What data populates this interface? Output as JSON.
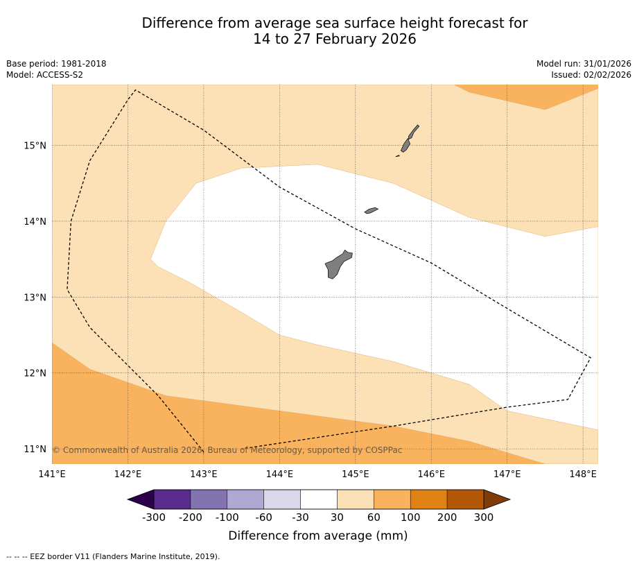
{
  "title_line1": "Difference from average sea surface height forecast for",
  "title_line2": "14 to 27 February 2026",
  "meta_left": [
    "Base period: 1981-2018",
    "Model: ACCESS-S2"
  ],
  "meta_right": [
    "Model run: 31/01/2026",
    "Issued: 02/02/2026"
  ],
  "copyright": "© Commonwealth of Australia 2026, Bureau of Meteorology, supported by COSPPac",
  "footnote": "--  --  -- EEZ border V11 (Flanders Marine Institute, 2019).",
  "map": {
    "lon_range": [
      141,
      148.2
    ],
    "lat_range": [
      10.8,
      15.8
    ],
    "lon_ticks": [
      141,
      142,
      143,
      144,
      145,
      146,
      147,
      148
    ],
    "lon_labels": [
      "141°E",
      "142°E",
      "143°E",
      "144°E",
      "145°E",
      "146°E",
      "147°E",
      "148°E"
    ],
    "lat_ticks": [
      11,
      12,
      13,
      14,
      15
    ],
    "lat_labels": [
      "11°N",
      "12°N",
      "13°N",
      "14°N",
      "15°N"
    ],
    "regions": [
      {
        "name": "30 to 60 mm",
        "color": "#fce0b6",
        "points": [
          [
            141,
            10.8
          ],
          [
            148.2,
            10.8
          ],
          [
            148.2,
            15.8
          ],
          [
            141,
            15.8
          ]
        ]
      },
      {
        "name": "60 to 100 mm (south)",
        "color": "#f9b35e",
        "points": [
          [
            141,
            12.4
          ],
          [
            141.5,
            12.05
          ],
          [
            142.5,
            11.7
          ],
          [
            144,
            11.5
          ],
          [
            145.5,
            11.3
          ],
          [
            146.5,
            11.1
          ],
          [
            147.5,
            10.8
          ],
          [
            141,
            10.8
          ]
        ]
      },
      {
        "name": "60 to 100 mm (north-east)",
        "color": "#f9b35e",
        "points": [
          [
            146.3,
            15.8
          ],
          [
            146.5,
            15.7
          ],
          [
            147.5,
            15.47
          ],
          [
            148.2,
            15.75
          ],
          [
            148.2,
            15.8
          ]
        ]
      },
      {
        "name": "-30 to 30 mm",
        "color": "#ffffff",
        "points": [
          [
            142.3,
            13.5
          ],
          [
            142.5,
            14.0
          ],
          [
            142.9,
            14.5
          ],
          [
            143.5,
            14.7
          ],
          [
            144.5,
            14.75
          ],
          [
            145.5,
            14.5
          ],
          [
            146.5,
            14.05
          ],
          [
            147.5,
            13.8
          ],
          [
            148.2,
            13.93
          ],
          [
            148.2,
            11.25
          ],
          [
            147.0,
            11.5
          ],
          [
            146.5,
            11.85
          ],
          [
            145.5,
            12.15
          ],
          [
            144.5,
            12.37
          ],
          [
            144.0,
            12.5
          ],
          [
            143.5,
            12.8
          ],
          [
            142.8,
            13.2
          ],
          [
            142.4,
            13.4
          ]
        ]
      }
    ],
    "islands": [
      {
        "name": "Guam",
        "points": [
          [
            144.62,
            13.45
          ],
          [
            144.7,
            13.48
          ],
          [
            144.75,
            13.52
          ],
          [
            144.83,
            13.57
          ],
          [
            144.86,
            13.62
          ],
          [
            144.9,
            13.59
          ],
          [
            144.96,
            13.58
          ],
          [
            144.95,
            13.52
          ],
          [
            144.85,
            13.47
          ],
          [
            144.8,
            13.4
          ],
          [
            144.76,
            13.3
          ],
          [
            144.7,
            13.24
          ],
          [
            144.64,
            13.26
          ],
          [
            144.64,
            13.36
          ],
          [
            144.6,
            13.44
          ]
        ]
      },
      {
        "name": "Rota",
        "points": [
          [
            145.12,
            14.12
          ],
          [
            145.18,
            14.16
          ],
          [
            145.26,
            14.18
          ],
          [
            145.3,
            14.16
          ],
          [
            145.24,
            14.13
          ],
          [
            145.2,
            14.11
          ],
          [
            145.15,
            14.1
          ]
        ]
      },
      {
        "name": "Tinian",
        "points": [
          [
            145.6,
            14.93
          ],
          [
            145.64,
            15.02
          ],
          [
            145.69,
            15.09
          ],
          [
            145.72,
            15.02
          ],
          [
            145.67,
            14.94
          ],
          [
            145.63,
            14.91
          ]
        ]
      },
      {
        "name": "Saipan",
        "points": [
          [
            145.7,
            15.12
          ],
          [
            145.76,
            15.2
          ],
          [
            145.82,
            15.27
          ],
          [
            145.84,
            15.25
          ],
          [
            145.77,
            15.17
          ],
          [
            145.74,
            15.1
          ],
          [
            145.7,
            15.08
          ]
        ]
      },
      {
        "name": "Aguijan",
        "points": [
          [
            145.53,
            14.85
          ],
          [
            145.57,
            14.87
          ],
          [
            145.58,
            14.86
          ]
        ]
      }
    ],
    "eez_border": [
      [
        143.0,
        10.96
      ],
      [
        142.4,
        11.7
      ],
      [
        141.5,
        12.6
      ],
      [
        141.2,
        13.1
      ],
      [
        141.25,
        14.0
      ],
      [
        141.5,
        14.8
      ],
      [
        142.0,
        15.6
      ],
      [
        142.1,
        15.73
      ],
      [
        143.0,
        15.2
      ],
      [
        144.0,
        14.45
      ],
      [
        145.0,
        13.9
      ],
      [
        146.0,
        13.45
      ],
      [
        147.0,
        12.85
      ],
      [
        148.1,
        12.2
      ],
      [
        147.8,
        11.65
      ],
      [
        147.0,
        11.55
      ],
      [
        145.5,
        11.3
      ],
      [
        143.5,
        11.0
      ]
    ]
  },
  "colorbar": {
    "label": "Difference from average (mm)",
    "colors": [
      "#582b8c",
      "#8373b1",
      "#aea8d3",
      "#d9d8ea",
      "#ffffff",
      "#fce0b6",
      "#f9b35e",
      "#e08214",
      "#b35806"
    ],
    "extend_low": "#2d004b",
    "extend_high": "#7f3b08",
    "tick_labels": [
      "-300",
      "-200",
      "-100",
      "-60",
      "-30",
      "30",
      "60",
      "100",
      "200",
      "300"
    ]
  }
}
